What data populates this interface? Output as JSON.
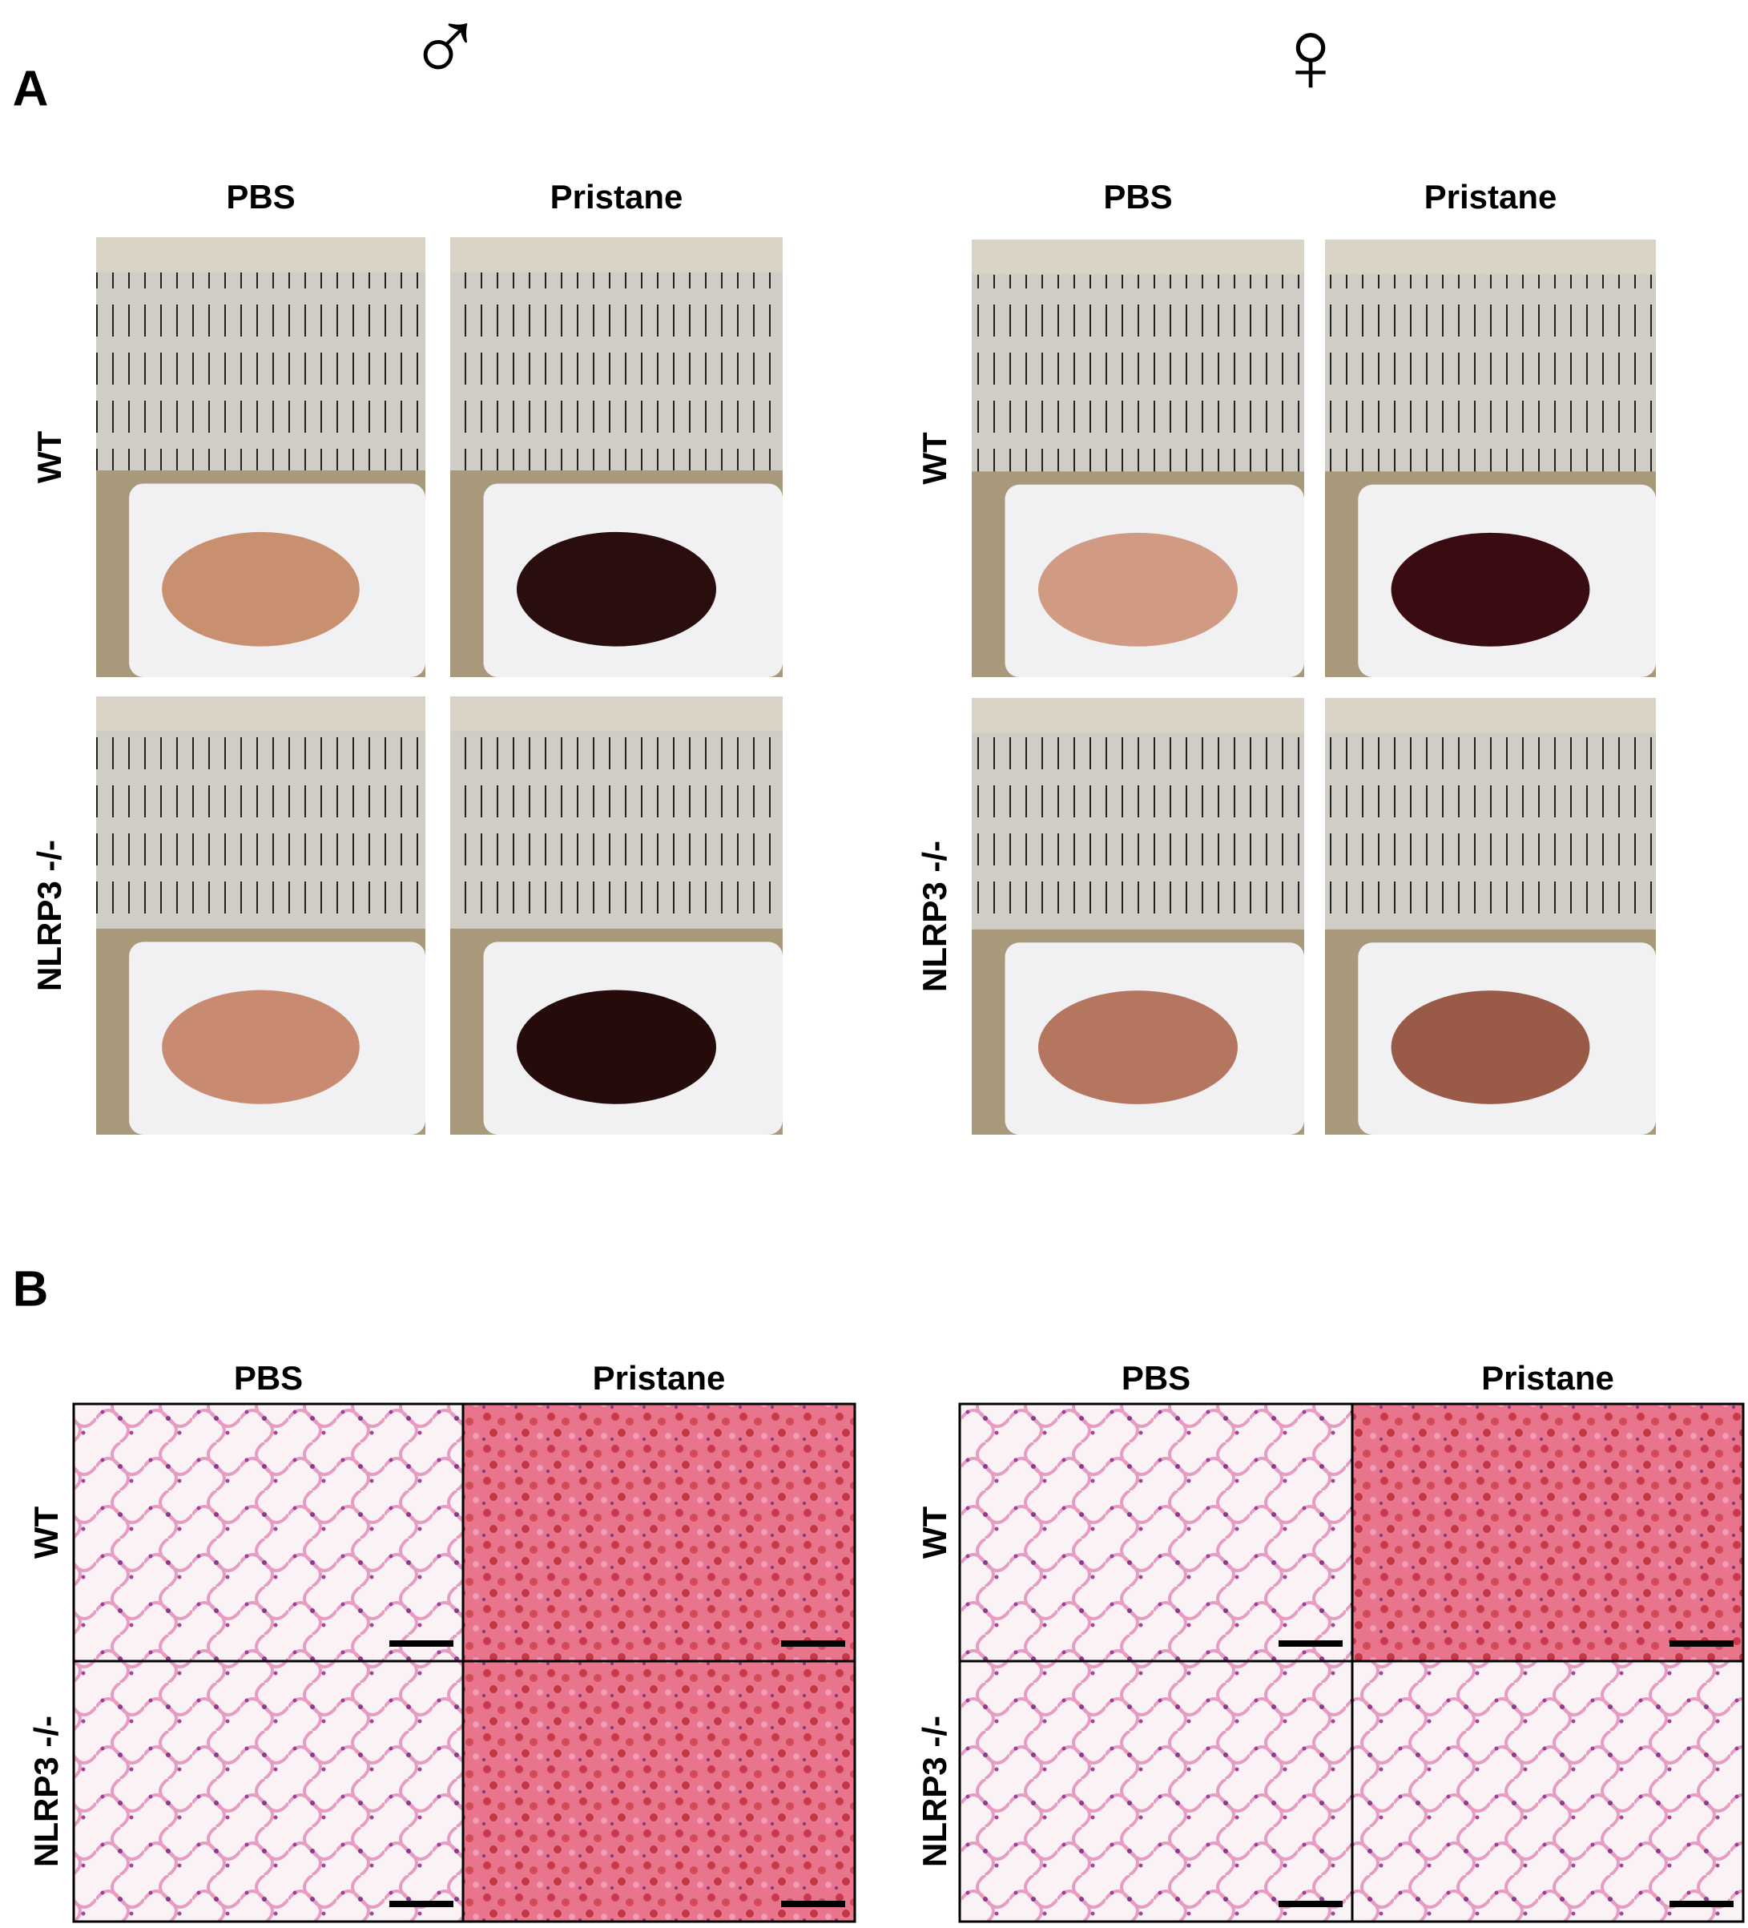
{
  "panel_a": {
    "label": "A",
    "groups": [
      {
        "symbol": "♂",
        "columns": [
          "PBS",
          "Pristane"
        ],
        "rows": [
          "WT",
          "NLRP3 -/-"
        ]
      },
      {
        "symbol": "♀",
        "columns": [
          "PBS",
          "Pristane"
        ],
        "rows": [
          "WT",
          "NLRP3 -/-"
        ]
      }
    ]
  },
  "panel_b": {
    "label": "B",
    "groups": [
      {
        "columns": [
          "PBS",
          "Pristane"
        ],
        "rows": [
          "WT",
          "NLRP3 -/-"
        ]
      },
      {
        "columns": [
          "PBS",
          "Pristane"
        ],
        "rows": [
          "WT",
          "NLRP3 -/-"
        ]
      }
    ]
  }
}
